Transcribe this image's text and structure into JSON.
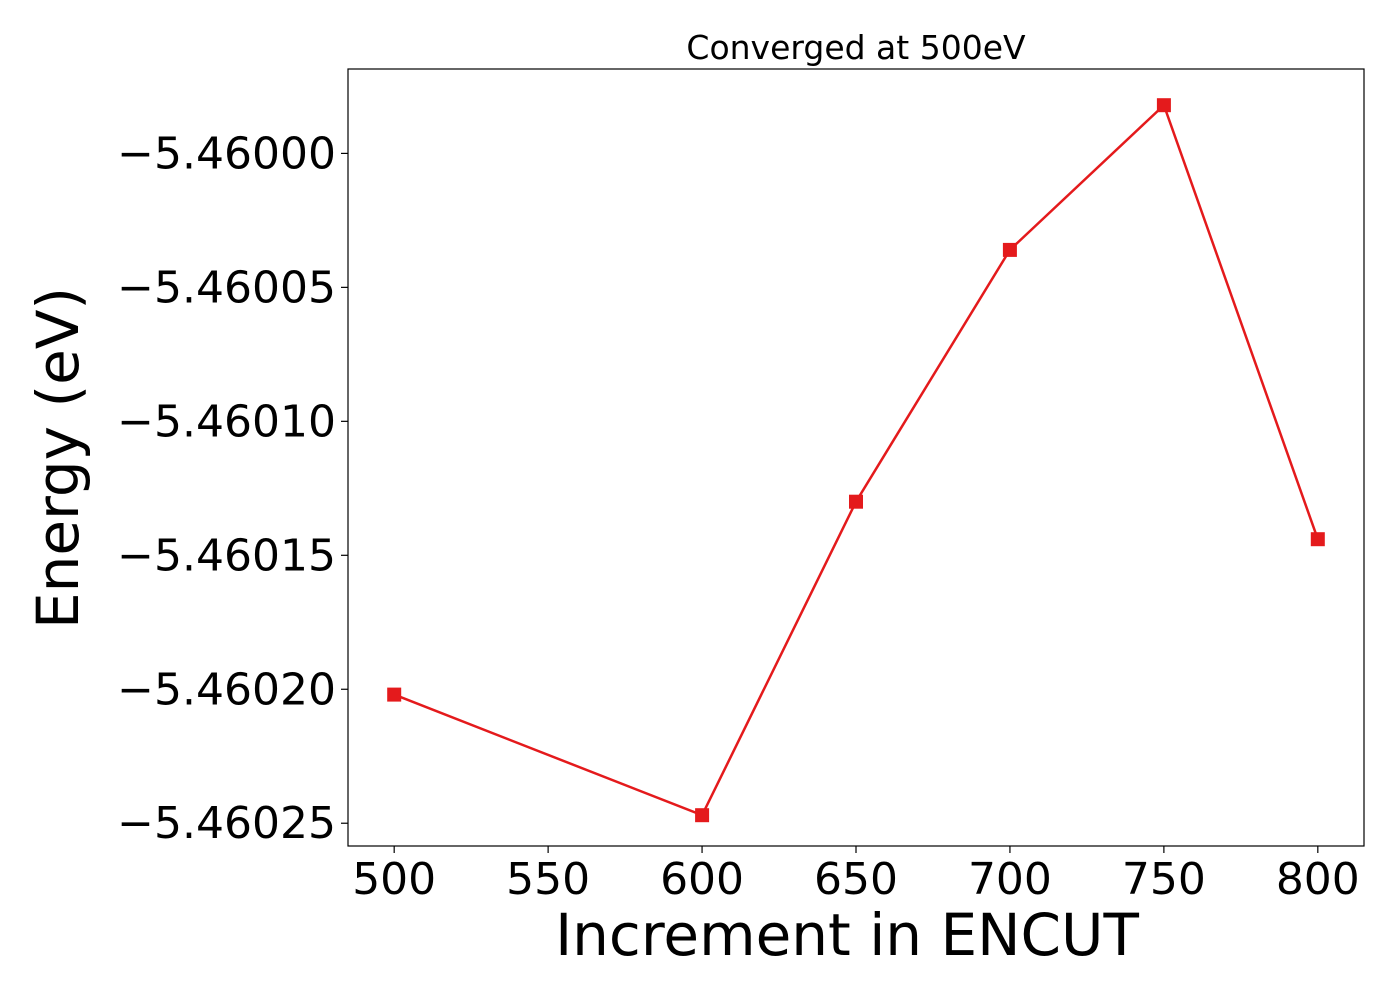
{
  "chart_data": {
    "type": "line",
    "title": "Converged at 500eV",
    "xlabel": "Increment in ENCUT",
    "ylabel": "Energy (eV)",
    "x": [
      500,
      600,
      650,
      700,
      750,
      800
    ],
    "series": [
      {
        "values": [
          -5.460202,
          -5.460247,
          -5.46013,
          -5.460036,
          -5.459982,
          -5.460144
        ],
        "color": "#e41a1c",
        "marker": "square"
      }
    ],
    "xlim": [
      485,
      815
    ],
    "ylim": [
      -5.4602585,
      -5.4599685
    ],
    "xticks": [
      500,
      550,
      600,
      650,
      700,
      750,
      800
    ],
    "xtick_labels": [
      "500",
      "550",
      "600",
      "650",
      "700",
      "750",
      "800"
    ],
    "yticks": [
      -5.46,
      -5.46005,
      -5.4601,
      -5.46015,
      -5.4602,
      -5.46025
    ],
    "ytick_labels": [
      "−5.46000",
      "−5.46005",
      "−5.46010",
      "−5.46015",
      "−5.46020",
      "−5.46025"
    ],
    "grid": false,
    "legend": "none"
  }
}
